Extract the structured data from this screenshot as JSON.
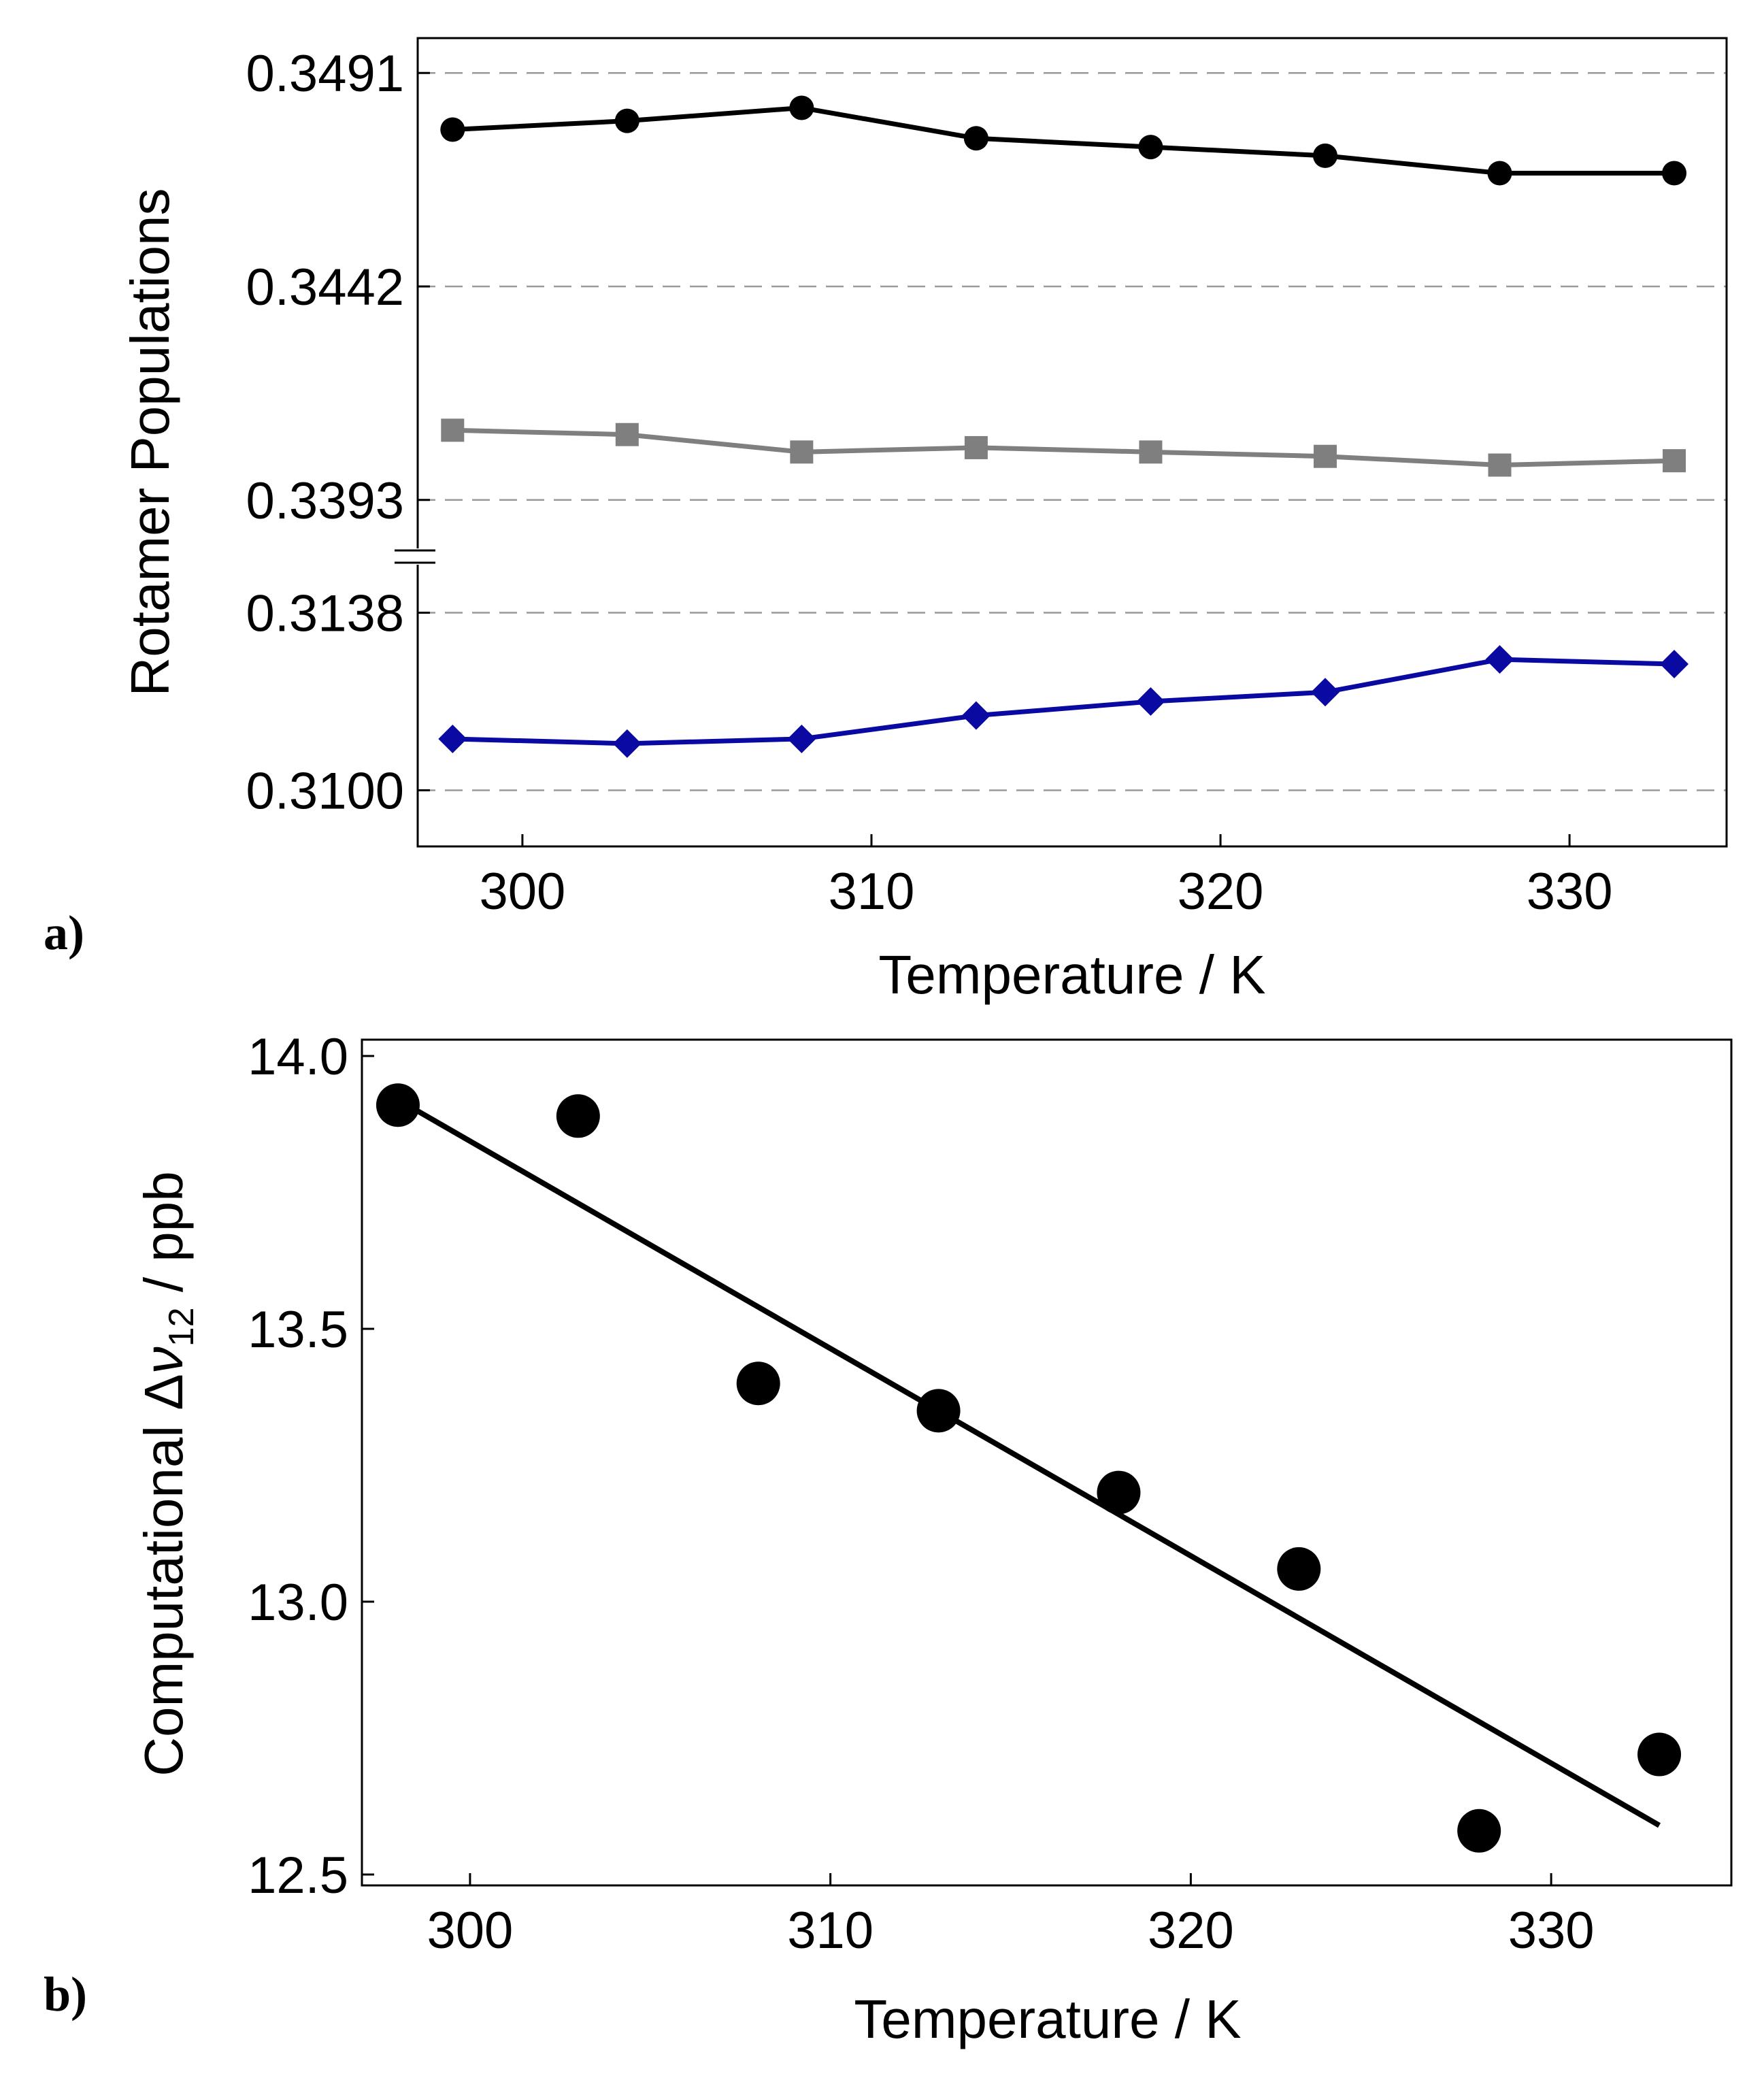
{
  "chart_data": [
    {
      "type": "line",
      "panel": "a)",
      "ylabel": "Rotamer Populations",
      "xlabel": "Temperature / K",
      "xlim": [
        297,
        334.5
      ],
      "xticks": [
        300,
        310,
        320,
        330
      ],
      "xtick_labels": [
        "300",
        "310",
        "320",
        "330"
      ],
      "axis_break": true,
      "upper_ylim": [
        0.338,
        0.3499
      ],
      "lower_ylim": [
        0.3088,
        0.315
      ],
      "yticks": [
        0.3491,
        0.3442,
        0.3393,
        0.3138,
        0.31
      ],
      "ytick_labels": [
        "0.3491",
        "0.3442",
        "0.3393",
        "0.3138",
        "0.3100"
      ],
      "grid": "dashed at tick values",
      "x": [
        298,
        303,
        308,
        313,
        318,
        323,
        328,
        333
      ],
      "series": [
        {
          "name": "black-circles",
          "segment": "upper",
          "color": "#000000",
          "marker": "circle",
          "values": [
            0.3478,
            0.348,
            0.3483,
            0.3476,
            0.3474,
            0.3472,
            0.3468,
            0.3468
          ]
        },
        {
          "name": "gray-squares",
          "segment": "upper",
          "color": "#7f7f7f",
          "marker": "square",
          "values": [
            0.3409,
            0.3408,
            0.3404,
            0.3405,
            0.3404,
            0.3403,
            0.3401,
            0.3402
          ]
        },
        {
          "name": "blue-diamonds",
          "segment": "lower",
          "color": "#0a0aa3",
          "marker": "diamond",
          "values": [
            0.3111,
            0.311,
            0.3111,
            0.3116,
            0.3119,
            0.3121,
            0.3128,
            0.3127
          ]
        }
      ]
    },
    {
      "type": "scatter",
      "panel": "b)",
      "ylabel_prefix": "Computational Δ",
      "ylabel_symbol": "ν",
      "ylabel_subscript": "12",
      "ylabel_suffix": " / ppb",
      "xlabel": "Temperature / K",
      "xlim": [
        297,
        335
      ],
      "ylim": [
        12.48,
        14.03
      ],
      "xticks": [
        300,
        310,
        320,
        330
      ],
      "xtick_labels": [
        "300",
        "310",
        "320",
        "330"
      ],
      "yticks": [
        12.5,
        13.0,
        13.5,
        14.0
      ],
      "ytick_labels": [
        "12.5",
        "13.0",
        "13.5",
        "14.0"
      ],
      "x": [
        298,
        303,
        308,
        313,
        318,
        323,
        328,
        333
      ],
      "values": [
        13.91,
        13.89,
        13.4,
        13.35,
        13.2,
        13.06,
        12.58,
        12.72
      ],
      "fit_line": {
        "x": [
          298,
          333
        ],
        "y": [
          13.92,
          12.59
        ]
      },
      "color": "#000000"
    }
  ]
}
